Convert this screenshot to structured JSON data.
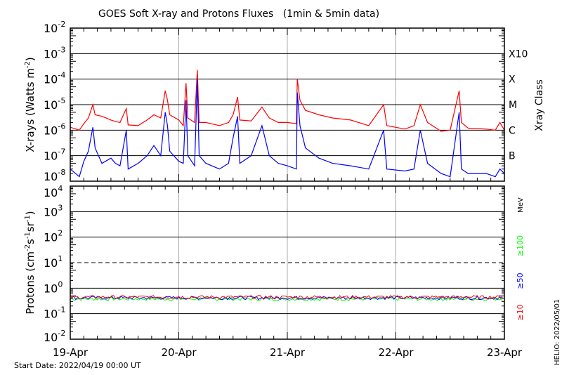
{
  "chart_data": [
    {
      "type": "line",
      "title": "GOES Soft X-ray and Protons Fluxes   (1min & 5min data)",
      "ylabel": "X-rays (Watts m",
      "ylabel_sup": "-2",
      "ylabel_end": ")",
      "yscale": "log",
      "ylim": [
        1e-08,
        0.01
      ],
      "y_tick_exponents": [
        -2,
        -3,
        -4,
        -5,
        -6,
        -7,
        -8
      ],
      "right_axis_title": "Xray Class",
      "classes": [
        {
          "label": "X10",
          "value": 0.001
        },
        {
          "label": "X",
          "value": 0.0001
        },
        {
          "label": "M",
          "value": 1e-05
        },
        {
          "label": "C",
          "value": 1e-06
        },
        {
          "label": "B",
          "value": 1e-07
        }
      ],
      "grid": "horizontal at class thresholds",
      "x_unit": "hours since start",
      "series": [
        {
          "color": "#ff0000",
          "points": [
            [
              0,
              1.3e-06
            ],
            [
              2,
              1e-06
            ],
            [
              3,
              1.8e-06
            ],
            [
              4,
              3e-06
            ],
            [
              5,
              1e-05
            ],
            [
              5.5,
              4e-06
            ],
            [
              7,
              3.5e-06
            ],
            [
              9,
              2.5e-06
            ],
            [
              10,
              2.2e-06
            ],
            [
              11,
              2e-06
            ],
            [
              12.4,
              7e-06
            ],
            [
              12.8,
              1.6e-06
            ],
            [
              15,
              1.5e-06
            ],
            [
              17,
              2.5e-06
            ],
            [
              18.5,
              4e-06
            ],
            [
              20,
              3e-06
            ],
            [
              21,
              3.5e-05
            ],
            [
              21.5,
              1.5e-05
            ],
            [
              22,
              4e-06
            ],
            [
              24,
              2.5e-06
            ],
            [
              25,
              1.5e-06
            ],
            [
              25.6,
              7e-05
            ],
            [
              26,
              3e-06
            ],
            [
              27.5,
              2e-06
            ],
            [
              28.1,
              0.00023
            ],
            [
              28.5,
              2e-06
            ],
            [
              30,
              2e-06
            ],
            [
              33,
              1.5e-06
            ],
            [
              35,
              2e-06
            ],
            [
              36,
              4e-06
            ],
            [
              37,
              2e-05
            ],
            [
              37.5,
              2.5e-06
            ],
            [
              40,
              2.3e-06
            ],
            [
              42.4,
              8e-06
            ],
            [
              44,
              3e-06
            ],
            [
              46,
              2e-06
            ],
            [
              48,
              2e-06
            ],
            [
              50,
              1.8e-06
            ],
            [
              50.2,
              0.0001
            ],
            [
              50.8,
              1.5e-05
            ],
            [
              52,
              6e-06
            ],
            [
              55,
              4e-06
            ],
            [
              58,
              3e-06
            ],
            [
              62,
              2.5e-06
            ],
            [
              66,
              1.5e-06
            ],
            [
              69.3,
              1e-05
            ],
            [
              70,
              1.5e-06
            ],
            [
              74,
              1.1e-06
            ],
            [
              76,
              1.5e-06
            ],
            [
              77.4,
              1e-05
            ],
            [
              79,
              2e-06
            ],
            [
              82,
              9e-07
            ],
            [
              84,
              1e-06
            ],
            [
              86,
              3.5e-05
            ],
            [
              86.5,
              2e-06
            ],
            [
              88,
              1.2e-06
            ],
            [
              92,
              1.1e-06
            ],
            [
              94,
              1e-06
            ],
            [
              95,
              2e-06
            ],
            [
              96,
              1e-06
            ]
          ]
        },
        {
          "color": "#0000ff",
          "points": [
            [
              0,
              3e-08
            ],
            [
              2,
              1.5e-08
            ],
            [
              3,
              6e-08
            ],
            [
              4,
              1.5e-07
            ],
            [
              5,
              1.3e-06
            ],
            [
              5.5,
              2e-07
            ],
            [
              7,
              5e-08
            ],
            [
              9,
              8e-08
            ],
            [
              10,
              5e-08
            ],
            [
              11,
              4e-08
            ],
            [
              12.4,
              1e-06
            ],
            [
              12.8,
              3e-08
            ],
            [
              15,
              5e-08
            ],
            [
              17,
              1e-07
            ],
            [
              18.5,
              2.5e-07
            ],
            [
              20,
              1e-07
            ],
            [
              21,
              5e-06
            ],
            [
              21.5,
              1.5e-06
            ],
            [
              22,
              1.5e-07
            ],
            [
              24,
              6e-08
            ],
            [
              25,
              5e-08
            ],
            [
              25.6,
              1.5e-05
            ],
            [
              26,
              1e-07
            ],
            [
              27.5,
              4e-08
            ],
            [
              28.1,
              0.0001
            ],
            [
              28.5,
              1e-07
            ],
            [
              30,
              5e-08
            ],
            [
              33,
              3e-08
            ],
            [
              35,
              5e-08
            ],
            [
              36,
              5e-07
            ],
            [
              37,
              3.5e-06
            ],
            [
              37.5,
              5e-08
            ],
            [
              40,
              1e-07
            ],
            [
              42.4,
              1.5e-06
            ],
            [
              44,
              1e-07
            ],
            [
              46,
              5e-08
            ],
            [
              48,
              4e-08
            ],
            [
              50,
              3e-08
            ],
            [
              50.2,
              3e-05
            ],
            [
              50.8,
              1.5e-06
            ],
            [
              52,
              2e-07
            ],
            [
              55,
              8e-08
            ],
            [
              58,
              5e-08
            ],
            [
              62,
              4e-08
            ],
            [
              66,
              3e-08
            ],
            [
              69.3,
              1e-06
            ],
            [
              70,
              3e-08
            ],
            [
              74,
              2.5e-08
            ],
            [
              76,
              3e-08
            ],
            [
              77.4,
              1e-06
            ],
            [
              79,
              5e-08
            ],
            [
              82,
              2e-08
            ],
            [
              84,
              1.5e-08
            ],
            [
              86,
              5e-06
            ],
            [
              86.5,
              3e-08
            ],
            [
              88,
              2e-08
            ],
            [
              92,
              2e-08
            ],
            [
              94,
              1.5e-08
            ],
            [
              95,
              3e-08
            ],
            [
              96,
              2e-08
            ]
          ]
        }
      ]
    },
    {
      "type": "line",
      "ylabel": "Protons (cm",
      "ylabel_parts": [
        "-2",
        "s",
        "-1",
        "sr",
        "-1",
        ")"
      ],
      "yscale": "log",
      "ylim": [
        0.01,
        10000.0
      ],
      "y_tick_exponents": [
        4,
        3,
        2,
        1,
        0,
        -1,
        -2
      ],
      "dashed_threshold": 10,
      "unit_label": "MeV",
      "series": [
        {
          "name": "≥10",
          "color": "#ff0000",
          "value": 0.45
        },
        {
          "name": "≥50",
          "color": "#0000ff",
          "value": 0.42
        },
        {
          "name": "≥100",
          "color": "#00ff00",
          "value": 0.38
        }
      ]
    }
  ],
  "x_tick_labels": [
    "19-Apr",
    "20-Apr",
    "21-Apr",
    "22-Apr",
    "23-Apr"
  ],
  "start_date": "Start Date: 2022/04/19 00:00 UT",
  "credit": "HELIO: 2022/05/01"
}
